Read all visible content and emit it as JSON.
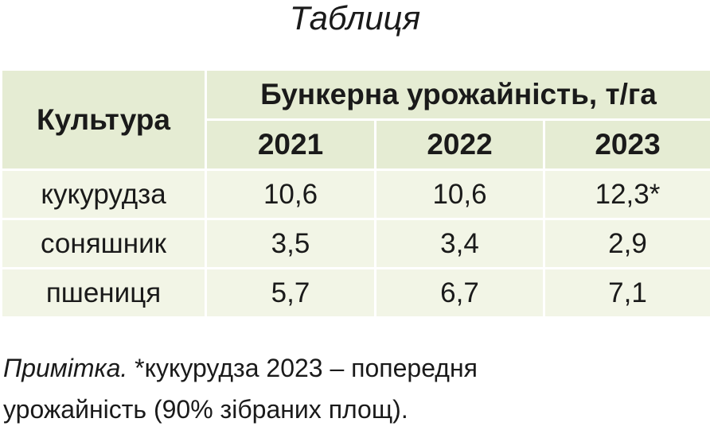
{
  "title": "Таблиця",
  "table": {
    "header": {
      "culture": "Культура",
      "group": "Бункерна урожайність, т/га",
      "years": [
        "2021",
        "2022",
        "2023"
      ]
    },
    "rows": [
      [
        "кукурудза",
        "10,6",
        "10,6",
        "12,3*"
      ],
      [
        "соняшник",
        "3,5",
        "3,4",
        "2,9"
      ],
      [
        "пшениця",
        "5,7",
        "6,7",
        "7,1"
      ]
    ]
  },
  "note": {
    "label": "Примітка.",
    "text": "*кукурудза 2023 – попередня урожайність (90% зібраних площ)."
  }
}
